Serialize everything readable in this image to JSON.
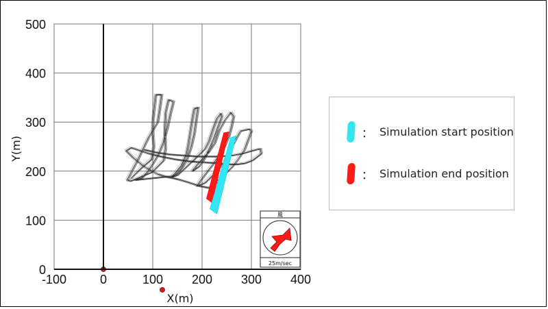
{
  "chart_data": {
    "type": "line",
    "title": "",
    "xlabel": "X(m)",
    "ylabel": "Y(m)",
    "xlim": [
      -100,
      400
    ],
    "ylim": [
      0,
      500
    ],
    "xticks": [
      -100,
      0,
      100,
      200,
      300,
      400
    ],
    "yticks": [
      0,
      100,
      200,
      300,
      400,
      500
    ],
    "grid": true,
    "legend_location": "right",
    "series": [
      {
        "label": "Simulation start position",
        "color": "#33e6f4",
        "start": [
          265,
          270
        ],
        "end": [
          220,
          115
        ]
      },
      {
        "label": "Simulation end position",
        "color": "#ff1a1a",
        "start": [
          248,
          280
        ],
        "end": [
          212,
          138
        ]
      },
      {
        "label": "",
        "color": "#222222",
        "path": [
          [
            55,
            185
          ],
          [
            75,
            205
          ],
          [
            98,
            225
          ],
          [
            102,
            250
          ],
          [
            100,
            280
          ],
          [
            100,
            300
          ],
          [
            106,
            356
          ],
          [
            118,
            356
          ],
          [
            113,
            320
          ],
          [
            110,
            300
          ],
          [
            92,
            270
          ],
          [
            80,
            245
          ],
          [
            68,
            220
          ],
          [
            60,
            205
          ],
          [
            48,
            182
          ],
          [
            55,
            180
          ],
          [
            98,
            198
          ],
          [
            122,
            222
          ],
          [
            126,
            248
          ],
          [
            124,
            280
          ],
          [
            126,
            320
          ],
          [
            132,
            346
          ],
          [
            142,
            342
          ],
          [
            136,
            318
          ],
          [
            130,
            290
          ],
          [
            122,
            260
          ],
          [
            112,
            235
          ],
          [
            100,
            215
          ],
          [
            90,
            200
          ],
          [
            78,
            186
          ],
          [
            64,
            182
          ],
          [
            140,
            190
          ],
          [
            158,
            212
          ],
          [
            168,
            235
          ],
          [
            172,
            255
          ],
          [
            176,
            280
          ],
          [
            180,
            306
          ],
          [
            184,
            328
          ],
          [
            192,
            330
          ],
          [
            188,
            304
          ],
          [
            184,
            276
          ],
          [
            178,
            250
          ],
          [
            170,
            226
          ],
          [
            160,
            208
          ],
          [
            150,
            196
          ],
          [
            138,
            188
          ],
          [
            150,
            192
          ],
          [
            186,
            226
          ],
          [
            206,
            246
          ],
          [
            214,
            262
          ],
          [
            222,
            286
          ],
          [
            230,
            308
          ],
          [
            238,
            318
          ],
          [
            240,
            312
          ],
          [
            232,
            290
          ],
          [
            224,
            268
          ],
          [
            214,
            244
          ],
          [
            204,
            224
          ],
          [
            194,
            210
          ],
          [
            180,
            200
          ],
          [
            190,
            214
          ],
          [
            214,
            240
          ],
          [
            226,
            258
          ],
          [
            234,
            282
          ],
          [
            246,
            304
          ],
          [
            258,
            320
          ],
          [
            264,
            312
          ],
          [
            260,
            292
          ],
          [
            254,
            270
          ],
          [
            246,
            252
          ],
          [
            234,
            232
          ],
          [
            222,
            214
          ],
          [
            208,
            196
          ],
          [
            196,
            180
          ],
          [
            190,
            170
          ],
          [
            205,
            176
          ],
          [
            228,
            198
          ],
          [
            246,
            220
          ],
          [
            258,
            246
          ],
          [
            270,
            268
          ],
          [
            278,
            282
          ],
          [
            296,
            286
          ],
          [
            300,
            282
          ],
          [
            292,
            260
          ],
          [
            286,
            244
          ],
          [
            274,
            226
          ],
          [
            262,
            210
          ],
          [
            246,
            194
          ],
          [
            232,
            182
          ],
          [
            224,
            170
          ],
          [
            214,
            166
          ],
          [
            194,
            170
          ],
          [
            170,
            178
          ],
          [
            150,
            184
          ],
          [
            130,
            188
          ],
          [
            110,
            194
          ],
          [
            95,
            202
          ],
          [
            82,
            210
          ],
          [
            72,
            218
          ],
          [
            60,
            228
          ],
          [
            52,
            236
          ],
          [
            46,
            242
          ],
          [
            56,
            248
          ],
          [
            74,
            242
          ],
          [
            92,
            236
          ],
          [
            116,
            230
          ],
          [
            146,
            224
          ],
          [
            176,
            220
          ],
          [
            206,
            218
          ],
          [
            236,
            216
          ],
          [
            252,
            214
          ],
          [
            270,
            214
          ],
          [
            286,
            216
          ],
          [
            302,
            222
          ],
          [
            320,
            236
          ],
          [
            318,
            246
          ],
          [
            302,
            242
          ],
          [
            282,
            236
          ],
          [
            260,
            232
          ],
          [
            236,
            230
          ],
          [
            214,
            230
          ],
          [
            190,
            230
          ],
          [
            164,
            232
          ],
          [
            136,
            234
          ],
          [
            108,
            238
          ],
          [
            82,
            244
          ]
        ]
      }
    ],
    "markers": [
      {
        "x": 0,
        "y": 0,
        "color": "#d81c1c"
      }
    ]
  },
  "axis_text": {
    "xlabel": "X(m)",
    "ylabel": "Y(m)"
  },
  "legend": {
    "start_label": "Simulation start position",
    "end_label": "Simulation end position",
    "prefix": "："
  },
  "wind": {
    "top_label": "風",
    "bottom_label": "25m/sec",
    "arrow_color": "#ff1a1a",
    "direction": "north-east"
  }
}
